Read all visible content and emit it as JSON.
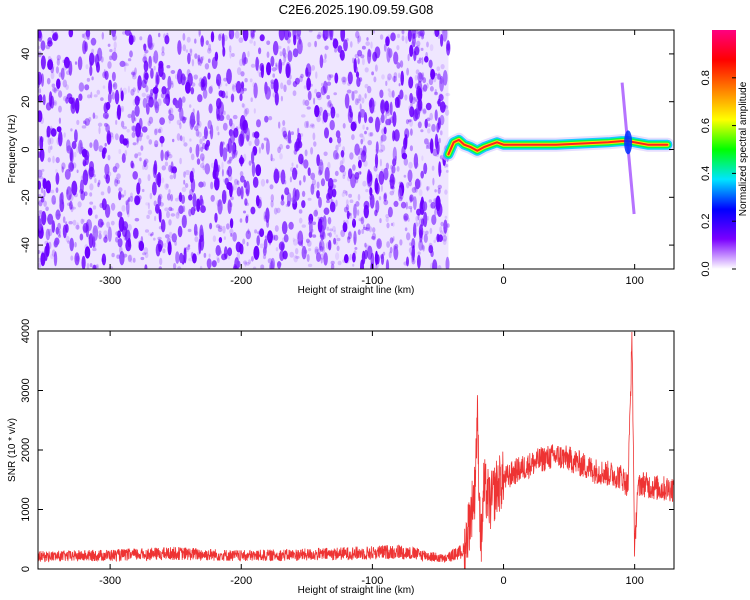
{
  "figure": {
    "title": "C2E6.2025.190.09.59.G08"
  },
  "chart_data": [
    {
      "type": "heatmap",
      "xlabel": "Height of straight line (km)",
      "ylabel": "Frequency (Hz)",
      "xlim": [
        -355,
        130
      ],
      "ylim": [
        -50,
        50
      ],
      "xticks": [
        -300,
        -200,
        -100,
        0,
        100
      ],
      "yticks": [
        -40,
        -20,
        0,
        20,
        40
      ],
      "colorbar": {
        "label": "Normalized spectral amplitude",
        "range": [
          0,
          1
        ],
        "ticks": [
          0.0,
          0.2,
          0.4,
          0.6,
          0.8
        ],
        "colormap": [
          "#ffffff",
          "#7a00ff",
          "#0000ff",
          "#00e5ff",
          "#00ff00",
          "#ffff00",
          "#ff8000",
          "#ff0000",
          "#ff0080"
        ]
      },
      "regions": {
        "noise_x_range": [
          -355,
          -42
        ],
        "noise_color": "#7a00ff",
        "signal_trace": {
          "x": [
            -42,
            -38,
            -34,
            -30,
            -25,
            -20,
            -15,
            -10,
            -5,
            0,
            20,
            40,
            60,
            80,
            90,
            95,
            100,
            110,
            125
          ],
          "y": [
            -2,
            3,
            4,
            2,
            1,
            -0.5,
            1,
            2,
            3,
            2,
            2,
            2,
            2.5,
            3,
            3.5,
            3.5,
            3,
            2,
            2
          ]
        },
        "transient_x": 95,
        "transient_y_range": [
          -27,
          28
        ]
      }
    },
    {
      "type": "line",
      "xlabel": "Height of straight line (km)",
      "ylabel": "SNR (10 * v/v)",
      "xlim": [
        -355,
        130
      ],
      "ylim": [
        0,
        4000
      ],
      "xticks": [
        -300,
        -200,
        -100,
        0,
        100
      ],
      "yticks": [
        0,
        1000,
        2000,
        3000,
        4000
      ],
      "line_color": "#ee3333",
      "series": [
        {
          "x": [
            -355,
            -300,
            -250,
            -200,
            -150,
            -100,
            -80,
            -60,
            -45,
            -30,
            -22,
            -20,
            -18,
            -17,
            -15,
            -10,
            -5,
            0,
            10,
            20,
            30,
            40,
            50,
            60,
            70,
            80,
            90,
            95,
            98,
            100,
            102,
            105,
            110,
            120,
            130
          ],
          "y": [
            200,
            220,
            250,
            210,
            230,
            260,
            280,
            220,
            160,
            300,
            1300,
            2600,
            900,
            400,
            1400,
            1100,
            1400,
            1500,
            1650,
            1750,
            1850,
            1900,
            1850,
            1750,
            1650,
            1600,
            1550,
            1400,
            3900,
            200,
            1300,
            1450,
            1400,
            1350,
            1350
          ]
        }
      ]
    }
  ]
}
